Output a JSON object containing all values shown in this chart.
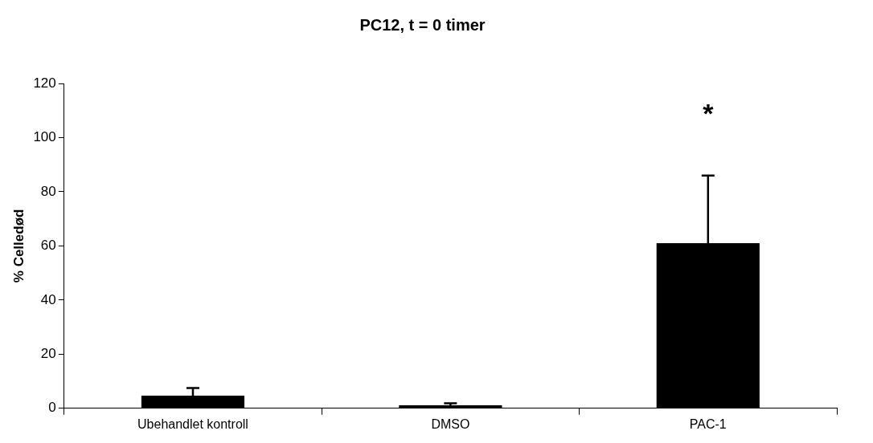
{
  "chart_data": {
    "type": "bar",
    "title": "PC12, t = 0 timer",
    "ylabel": "% Celledød",
    "categories": [
      "Ubehandlet kontroll",
      "DMSO",
      "PAC-1"
    ],
    "values": [
      4.7,
      1.1,
      61
    ],
    "errors": [
      2.8,
      0.8,
      25
    ],
    "color": "#000000",
    "ylim": [
      0,
      120
    ],
    "yticks": [
      0,
      20,
      40,
      60,
      80,
      100,
      120
    ],
    "grid": false,
    "legend": false,
    "annotations": [
      "*"
    ]
  }
}
